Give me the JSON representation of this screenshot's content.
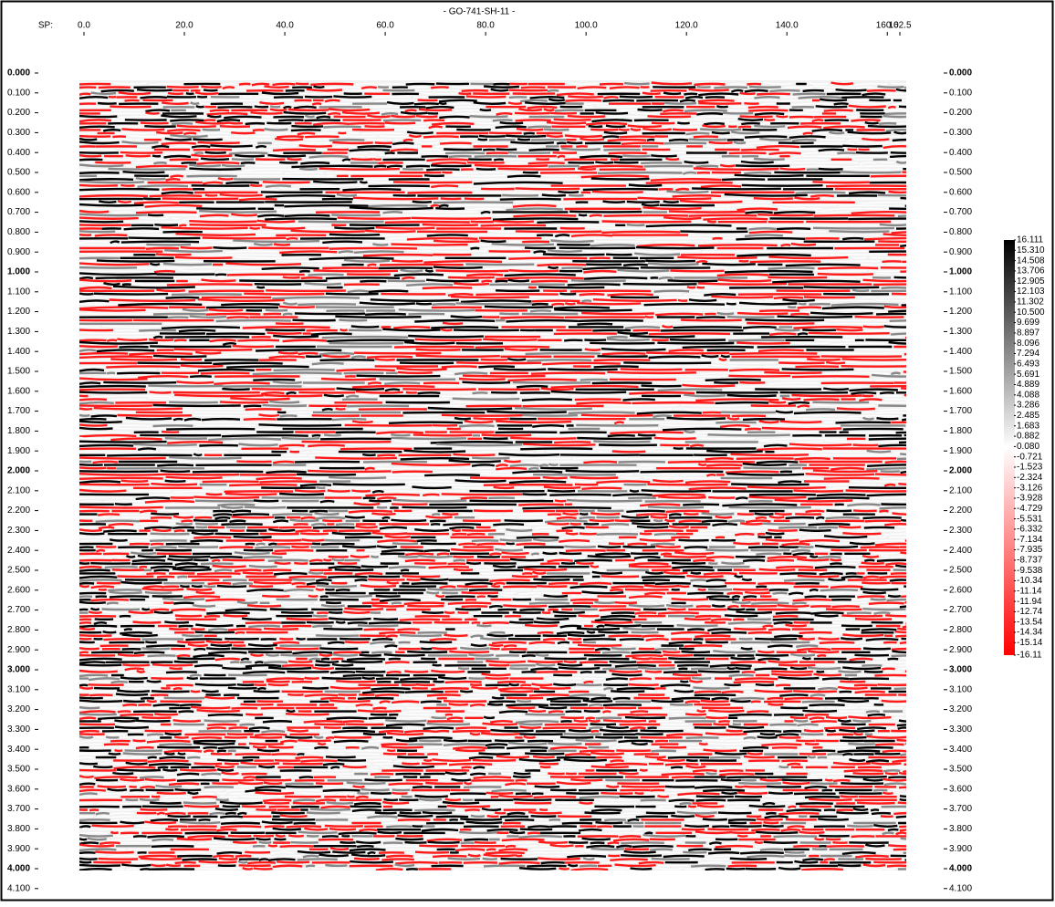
{
  "chart_data": {
    "type": "seismic-section",
    "title": "- GO-741-SH-11 -",
    "xlabel": "SP:",
    "xlim": [
      0,
      162.5
    ],
    "xticks": [
      {
        "value": 0,
        "label": "0.0"
      },
      {
        "value": 20,
        "label": "20.0"
      },
      {
        "value": 40,
        "label": "40.0"
      },
      {
        "value": 60,
        "label": "60.0"
      },
      {
        "value": 80,
        "label": "80.0"
      },
      {
        "value": 100,
        "label": "100.0"
      },
      {
        "value": 120,
        "label": "120.0"
      },
      {
        "value": 140,
        "label": "140.0"
      },
      {
        "value": 160,
        "label": "160.0"
      },
      {
        "value": 162.5,
        "label": "162.5"
      }
    ],
    "ylim": [
      0,
      4.1
    ],
    "yticks": [
      {
        "value": 0,
        "label": "0.000"
      },
      {
        "value": 0.1,
        "label": "0.100"
      },
      {
        "value": 0.2,
        "label": "0.200"
      },
      {
        "value": 0.3,
        "label": "0.300"
      },
      {
        "value": 0.4,
        "label": "0.400"
      },
      {
        "value": 0.5,
        "label": "0.500"
      },
      {
        "value": 0.6,
        "label": "0.600"
      },
      {
        "value": 0.7,
        "label": "0.700"
      },
      {
        "value": 0.8,
        "label": "0.800"
      },
      {
        "value": 0.9,
        "label": "0.900"
      },
      {
        "value": 1,
        "label": "1.000"
      },
      {
        "value": 1.1,
        "label": "1.100"
      },
      {
        "value": 1.2,
        "label": "1.200"
      },
      {
        "value": 1.3,
        "label": "1.300"
      },
      {
        "value": 1.4,
        "label": "1.400"
      },
      {
        "value": 1.5,
        "label": "1.500"
      },
      {
        "value": 1.6,
        "label": "1.600"
      },
      {
        "value": 1.7,
        "label": "1.700"
      },
      {
        "value": 1.8,
        "label": "1.800"
      },
      {
        "value": 1.9,
        "label": "1.900"
      },
      {
        "value": 2,
        "label": "2.000"
      },
      {
        "value": 2.1,
        "label": "2.100"
      },
      {
        "value": 2.2,
        "label": "2.200"
      },
      {
        "value": 2.3,
        "label": "2.300"
      },
      {
        "value": 2.4,
        "label": "2.400"
      },
      {
        "value": 2.5,
        "label": "2.500"
      },
      {
        "value": 2.6,
        "label": "2.600"
      },
      {
        "value": 2.7,
        "label": "2.700"
      },
      {
        "value": 2.8,
        "label": "2.800"
      },
      {
        "value": 2.9,
        "label": "2.900"
      },
      {
        "value": 3,
        "label": "3.000"
      },
      {
        "value": 3.1,
        "label": "3.100"
      },
      {
        "value": 3.2,
        "label": "3.200"
      },
      {
        "value": 3.3,
        "label": "3.300"
      },
      {
        "value": 3.4,
        "label": "3.400"
      },
      {
        "value": 3.5,
        "label": "3.500"
      },
      {
        "value": 3.6,
        "label": "3.600"
      },
      {
        "value": 3.7,
        "label": "3.700"
      },
      {
        "value": 3.8,
        "label": "3.800"
      },
      {
        "value": 3.9,
        "label": "3.900"
      },
      {
        "value": 4,
        "label": "4.000"
      },
      {
        "value": 4.1,
        "label": "4.100"
      }
    ],
    "colorbar": {
      "colors": [
        "#000000",
        "#ffffff",
        "#ff0000"
      ],
      "clim": [
        -16.11,
        16.111
      ],
      "ticks": [
        16.111,
        {
          "value": 15.31,
          "label": "15.310"
        },
        14.508,
        13.706,
        12.905,
        12.103,
        11.302,
        {
          "value": 10.5,
          "label": "10.500"
        },
        9.699,
        8.897,
        8.096,
        7.294,
        6.493,
        5.691,
        4.889,
        4.088,
        3.286,
        2.485,
        1.683,
        0.882,
        {
          "value": 0.08,
          "label": "0.080"
        },
        -0.721,
        -1.523,
        -2.324,
        -3.126,
        -3.928,
        -4.729,
        -5.531,
        -6.332,
        -7.134,
        -7.935,
        -8.737,
        -9.538,
        -10.34,
        -11.14,
        -11.94,
        -12.74,
        -13.54,
        -14.34,
        -15.14,
        -16.11
      ]
    }
  }
}
